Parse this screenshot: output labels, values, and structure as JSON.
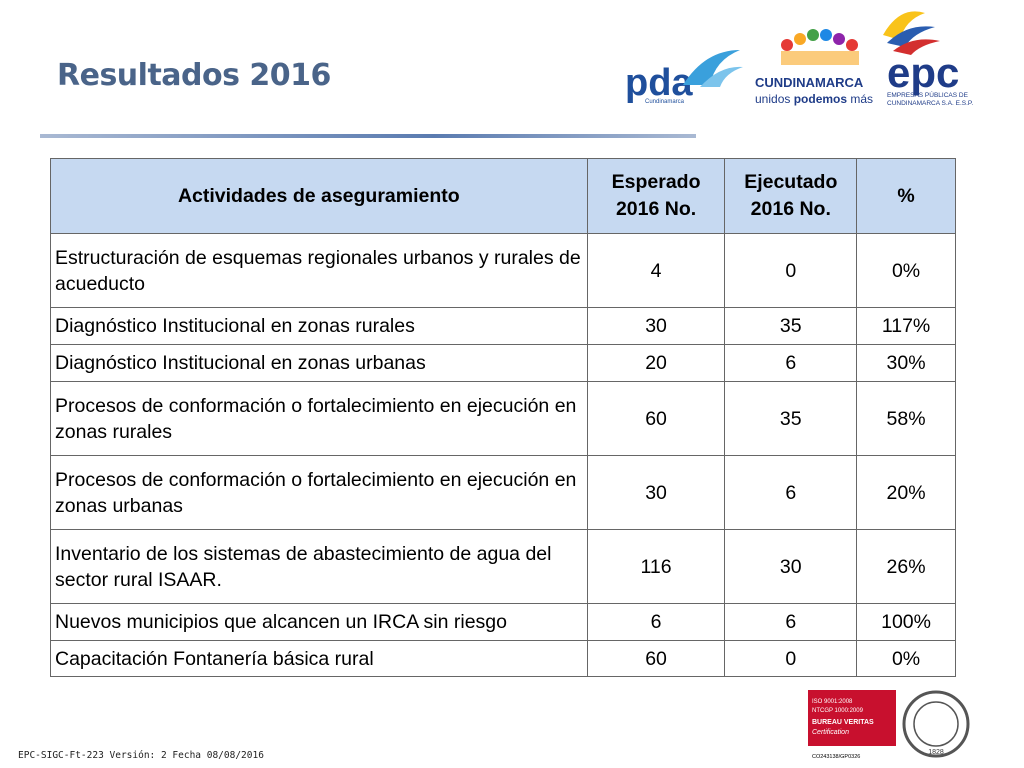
{
  "header": {
    "title": "Resultados 2016"
  },
  "logos": {
    "pda": {
      "name": "pda",
      "sub": "Cundinamarca"
    },
    "cundinamarca": {
      "name": "CUNDINAMARCA",
      "slogan_a": "unidos ",
      "slogan_b": "podemos",
      "slogan_c": " más"
    },
    "epc": {
      "name": "epc",
      "line1": "EMPRESAS PÚBLICAS DE",
      "line2": "CUNDINAMARCA S.A. E.S.P."
    },
    "bureau": {
      "line1": "ISO 9001:2008",
      "line2": "NTCGP 1000:2009",
      "line3": "BUREAU VERITAS",
      "line4": "Certification",
      "code": "CO243138/GP0326",
      "year": "1828"
    }
  },
  "table": {
    "columns": [
      "Actividades de aseguramiento",
      "Esperado 2016 No.",
      "Ejecutado 2016 No.",
      "%"
    ],
    "rows": [
      [
        "Estructuración de esquemas regionales urbanos y rurales de acueducto",
        "4",
        "0",
        "0%"
      ],
      [
        "Diagnóstico Institucional en zonas rurales",
        "30",
        "35",
        "117%"
      ],
      [
        "Diagnóstico Institucional en zonas urbanas",
        "20",
        "6",
        "30%"
      ],
      [
        "Procesos de conformación o fortalecimiento en ejecución en zonas rurales",
        "60",
        "35",
        "58%"
      ],
      [
        "Procesos de conformación o fortalecimiento en ejecución en zonas urbanas",
        "30",
        "6",
        "20%"
      ],
      [
        "Inventario de los sistemas de abastecimiento de agua del sector rural ISAAR.",
        "116",
        "30",
        "26%"
      ],
      [
        "Nuevos municipios que alcancen un IRCA sin riesgo",
        "6",
        "6",
        "100%"
      ],
      [
        "Capacitación Fontanería básica rural",
        "60",
        "0",
        "0%"
      ]
    ]
  },
  "footer": {
    "text": "EPC-SIGC-Ft-223 Versión: 2 Fecha 08/08/2016"
  }
}
